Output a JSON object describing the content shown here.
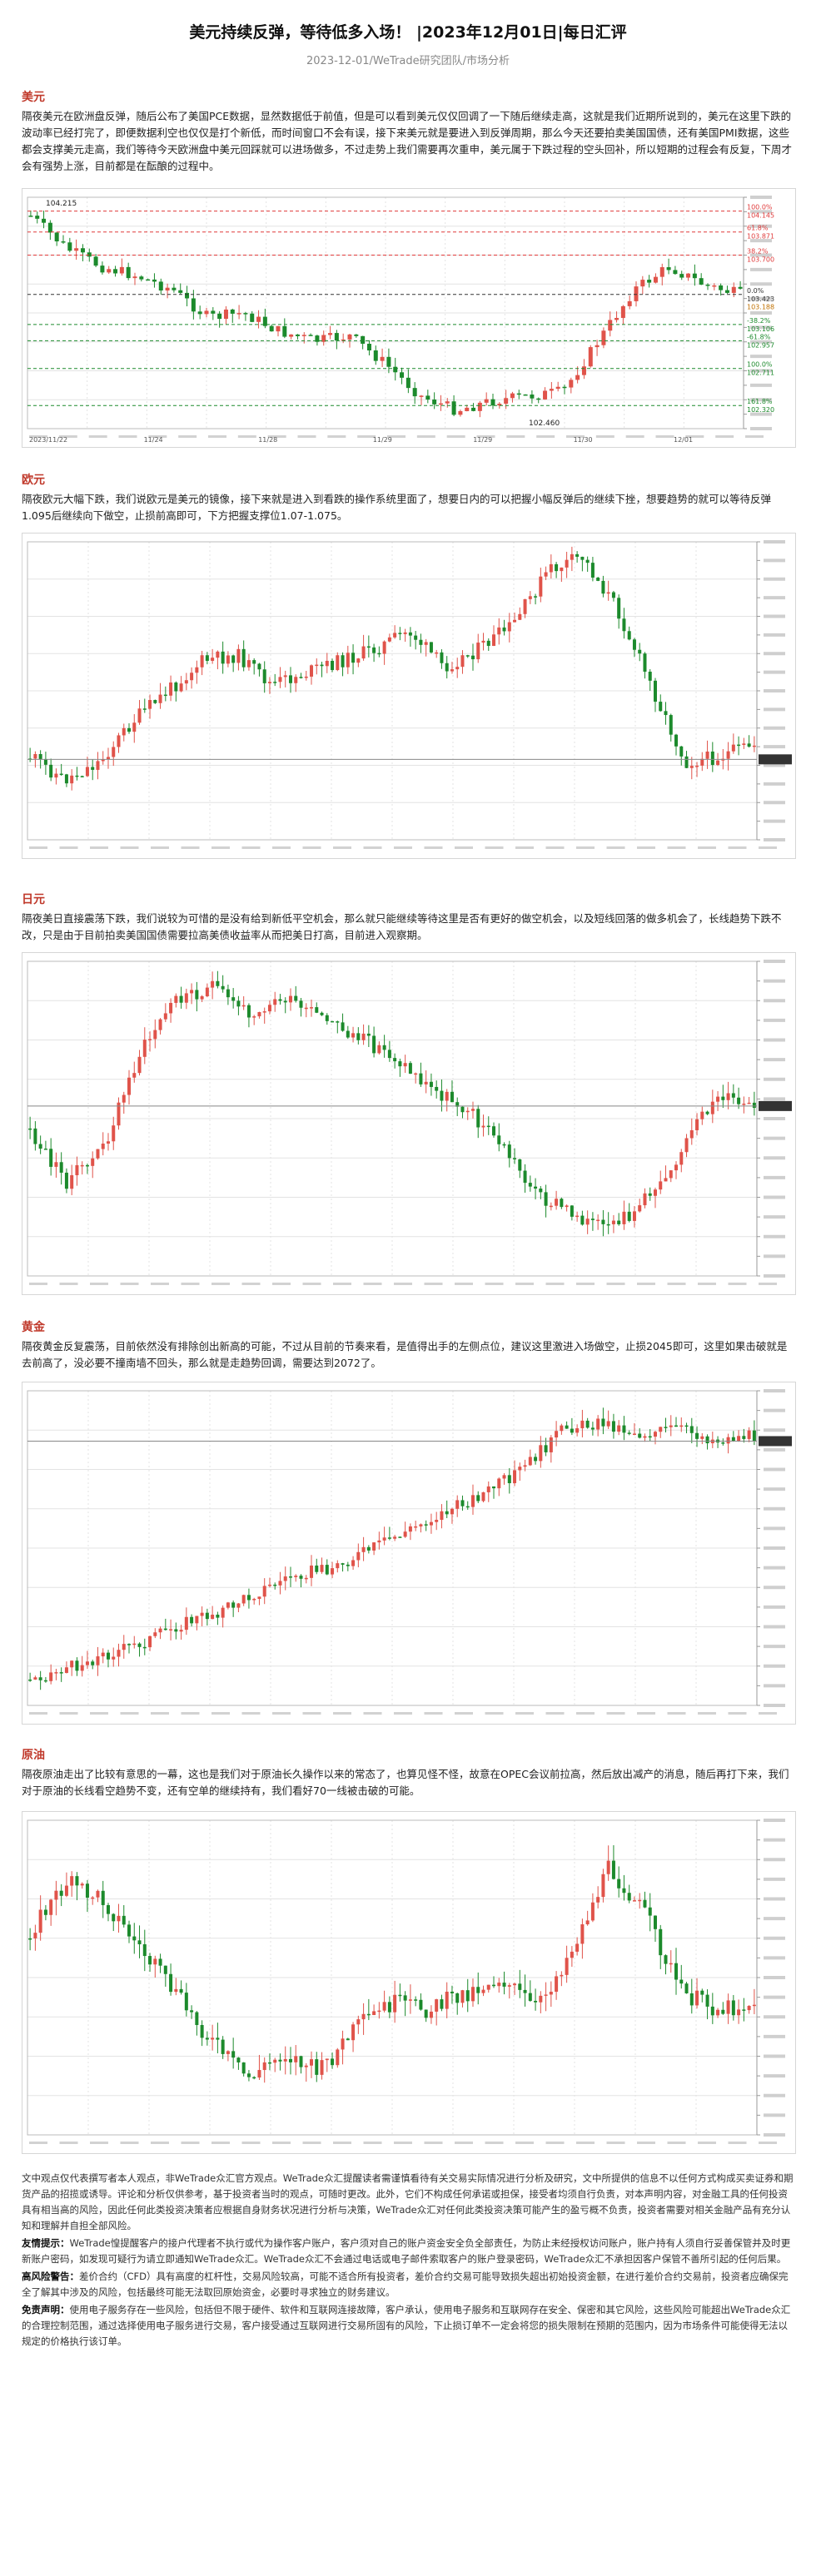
{
  "header": {
    "title": "美元持续反弹，等待低多入场！ |2023年12月01日|每日汇评",
    "subtitle": "2023-12-01/WeTrade研究团队/市场分析"
  },
  "sections": [
    {
      "key": "usd",
      "heading": "美元",
      "body": "隔夜美元在欧洲盘反弹，随后公布了美国PCE数据，显然数据低于前值，但是可以看到美元仅仅回调了一下随后继续走高，这就是我们近期所说到的，美元在这里下跌的波动率已经打完了，即便数据利空也仅仅是打个新低，而时间窗口不会有误，接下来美元就是要进入到反弹周期，那么今天还要拍卖美国国债，还有美国PMI数据，这些都会支撑美元走高，我们等待今天欧洲盘中美元回踩就可以进场做多，不过走势上我们需要再次重申，美元属于下跌过程的空头回补，所以短期的过程会有反复，下周才会有强势上涨，目前都是在酝酿的过程中。",
      "chart": {
        "high_label": "104.215",
        "low_label": "102.460",
        "x_labels": [
          "2023/11/22",
          "11/24",
          "11/28",
          "11/29",
          "11/29",
          "11/30",
          "12/01"
        ],
        "right_labels": [
          "100.0%",
          "104.145",
          "61.8%",
          "103.871",
          "38.2%",
          "103.700",
          "0.0%",
          "103.423",
          "-38.2%",
          "103.106",
          "-61.8%",
          "102.957",
          "100.0%",
          "102.711",
          "161.8%",
          "102.320"
        ],
        "current_label": "103.188"
      }
    },
    {
      "key": "eur",
      "heading": "欧元",
      "body": "隔夜欧元大幅下跌，我们说欧元是美元的镜像，接下来就是进入到看跌的操作系统里面了，想要日内的可以把握小幅反弹后的继续下挫，想要趋势的就可以等待反弹1.095后继续向下做空，止损前高即可，下方把握支撑位1.07-1.075。"
    },
    {
      "key": "jpy",
      "heading": "日元",
      "body": "隔夜美日直接震荡下跌，我们说较为可惜的是没有给到新低平空机会，那么就只能继续等待这里是否有更好的做空机会，以及短线回落的做多机会了，长线趋势下跌不改，只是由于目前拍卖美国国债需要拉高美债收益率从而把美日打高，目前进入观察期。"
    },
    {
      "key": "gold",
      "heading": "黄金",
      "body": "隔夜黄金反复震荡，目前依然没有排除创出新高的可能，不过从目前的节奏来看，是值得出手的左侧点位，建议这里激进入场做空，止损2045即可，这里如果击破就是去前高了，没必要不撞南墙不回头，那么就是走趋势回调，需要达到2072了。"
    },
    {
      "key": "oil",
      "heading": "原油",
      "body": "隔夜原油走出了比较有意思的一幕，这也是我们对于原油长久操作以来的常态了，也算见怪不怪，故意在OPEC会议前拉高，然后放出减产的消息，随后再打下来，我们对于原油的长线看空趋势不变，还有空单的继续持有，我们看好70一线被击破的可能。"
    }
  ],
  "disclaimer": {
    "intro": "文中观点仅代表撰写者本人观点，非WeTrade众汇官方观点。WeTrade众汇提醒读者需谨慎看待有关交易实际情况进行分析及研究，文中所提供的信息不以任何方式构成买卖证券和期货产品的招揽或诱导。评论和分析仅供参考，基于投资者当时的观点，可随时更改。此外，它们不构成任何承诺或担保，接受者均须自行负责，对本声明内容，对金融工具的任何投资具有相当高的风险，因此任何此类投资决策者应根据自身财务状况进行分析与决策，WeTrade众汇对任何此类投资决策可能产生的盈亏概不负责，投资者需要对相关金融产品有充分认知和理解并自担全部风险。",
    "risk_label": "友情提示：",
    "risk_text": "WeTrade惶提醒客户的接户代理者不执行或代为操作客户账户，客户须对自己的账户资金安全负全部责任，为防止未经授权访问账户，账户持有人须自行妥善保管并及时更新账户密码，如发现可疑行为请立即通知WeTrade众汇。WeTrade众汇不会通过电话或电子邮件索取客户的账户登录密码，WeTrade众汇不承担因客户保管不善所引起的任何后果。",
    "margin_label": "高风险警告：",
    "margin_text": "差价合约（CFD）具有高度的杠杆性，交易风险较高，可能不适合所有投资者，差价合约交易可能导致损失超出初始投资金额，在进行差价合约交易前，投资者应确保完全了解其中涉及的风险，包括最终可能无法取回原始资金，必要时寻求独立的财务建议。",
    "duty_label": "免责声明：",
    "duty_text": "使用电子服务存在一些风险，包括但不限于硬件、软件和互联网连接故障，客户承认，使用电子服务和互联网存在安全、保密和其它风险，这些风险可能超出WeTrade众汇的合理控制范围，通过选择使用电子服务进行交易，客户接受通过互联网进行交易所固有的风险，下止损订单不一定会将您的损失限制在预期的范围内，因为市场条件可能使得无法以规定的价格执行该订单。"
  },
  "colors": {
    "section_heading": "#c0392b",
    "up_candle": "#e0534a",
    "down_candle": "#1c8a2c",
    "grid": "#e3e3e3"
  }
}
